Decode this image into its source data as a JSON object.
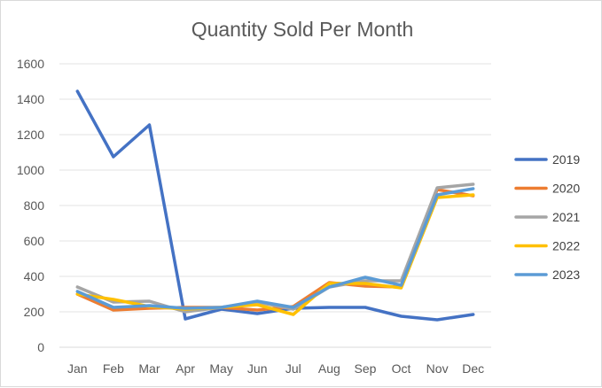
{
  "chart_data": {
    "type": "line",
    "title": "Quantity Sold Per Month",
    "xlabel": "",
    "ylabel": "",
    "categories": [
      "Jan",
      "Feb",
      "Mar",
      "Apr",
      "May",
      "Jun",
      "Jul",
      "Aug",
      "Sep",
      "Oct",
      "Nov",
      "Dec"
    ],
    "ylim": [
      0,
      1600
    ],
    "yticks": [
      "0",
      "200",
      "400",
      "600",
      "800",
      "1000",
      "1200",
      "1400",
      "1600"
    ],
    "grid": "horizontal",
    "legend_position": "right",
    "series": [
      {
        "name": "2019",
        "color": "#4472C4",
        "values": [
          1445,
          1075,
          1255,
          160,
          215,
          190,
          220,
          225,
          225,
          175,
          155,
          185
        ]
      },
      {
        "name": "2020",
        "color": "#ED7D31",
        "values": [
          300,
          210,
          220,
          225,
          225,
          210,
          230,
          365,
          345,
          340,
          890,
          855
        ]
      },
      {
        "name": "2021",
        "color": "#A5A5A5",
        "values": [
          340,
          255,
          260,
          200,
          225,
          255,
          215,
          340,
          375,
          375,
          900,
          920
        ]
      },
      {
        "name": "2022",
        "color": "#FFC000",
        "values": [
          300,
          270,
          230,
          215,
          225,
          240,
          185,
          360,
          360,
          335,
          845,
          860
        ]
      },
      {
        "name": "2023",
        "color": "#5B9BD5",
        "values": [
          315,
          225,
          235,
          220,
          225,
          260,
          225,
          340,
          395,
          350,
          860,
          895
        ]
      }
    ]
  }
}
